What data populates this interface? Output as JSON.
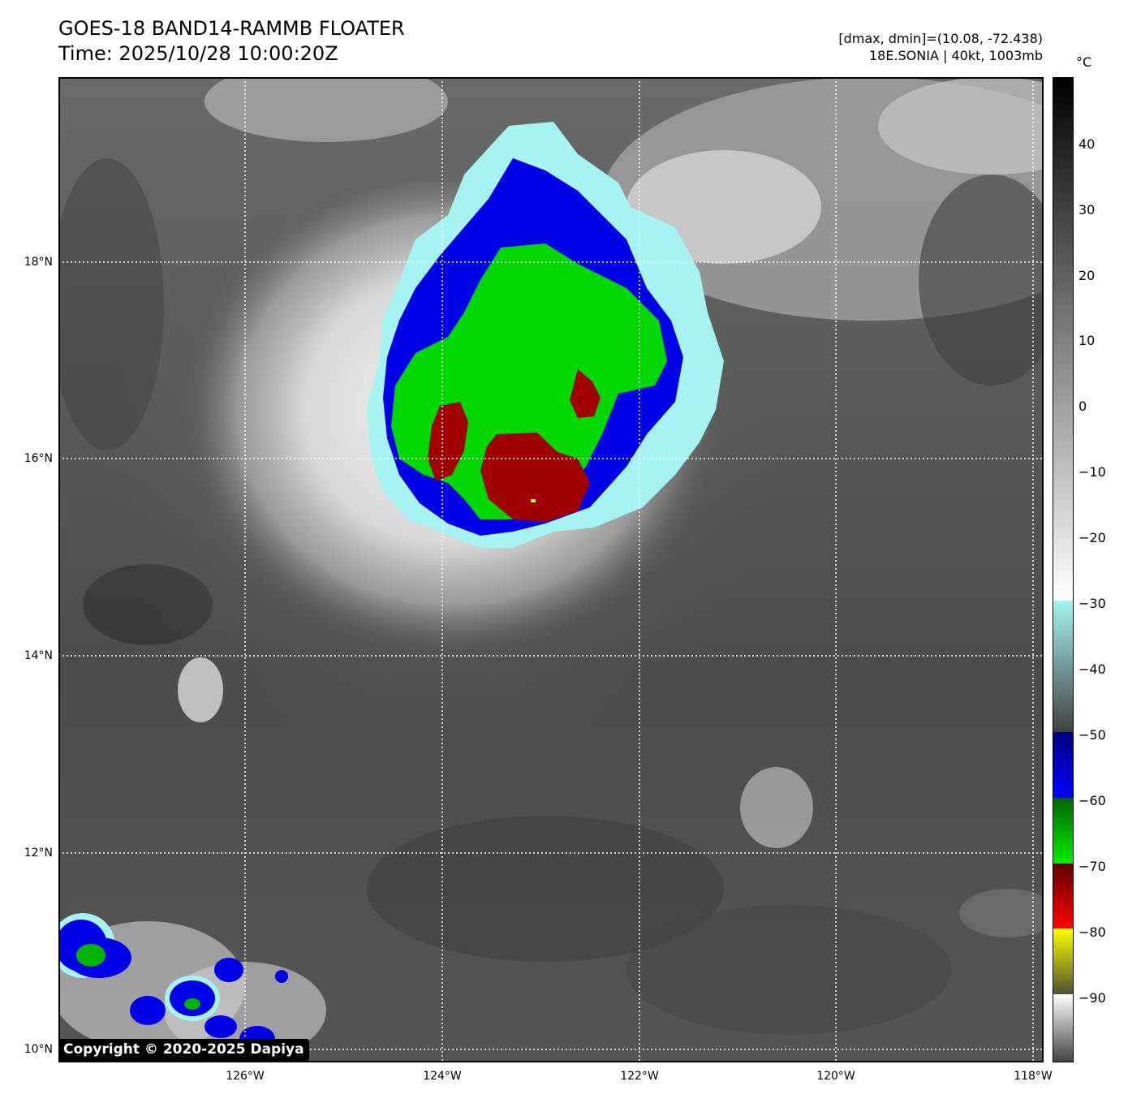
{
  "header": {
    "title_line1": "GOES-18 BAND14-RAMMB FLOATER",
    "title_line2": "Time: 2025/10/28 10:00:20Z",
    "info_line1": "[dmax, dmin]=(10.08, -72.438)",
    "info_line2": "18E.SONIA | 40kt, 1003mb"
  },
  "colorbar": {
    "unit": "°C",
    "ticks": [
      "40",
      "30",
      "20",
      "10",
      "0",
      "−10",
      "−20",
      "−30",
      "−40",
      "−50",
      "−60",
      "−70",
      "−80",
      "−90"
    ],
    "colors": {
      "cyan": "#a6f3f3",
      "navy": "#000080",
      "blue": "#0000ff",
      "dark_green": "#006400",
      "green": "#00ee00",
      "dark_red": "#8b0000",
      "red": "#ff0000",
      "yellow": "#ffff00",
      "olive": "#606030"
    }
  },
  "map": {
    "lat_labels": [
      "18°N",
      "16°N",
      "14°N",
      "12°N",
      "10°N"
    ],
    "lon_labels": [
      "126°W",
      "124°W",
      "122°W",
      "120°W",
      "118°W"
    ],
    "copyright": "Copyright © 2020-2025 Dapiya"
  }
}
